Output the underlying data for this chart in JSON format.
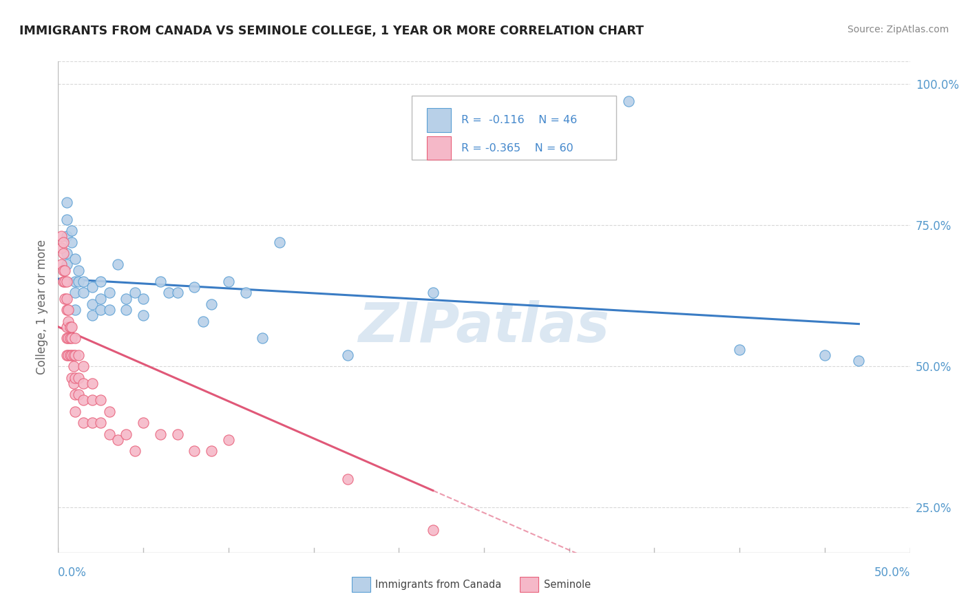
{
  "title": "IMMIGRANTS FROM CANADA VS SEMINOLE COLLEGE, 1 YEAR OR MORE CORRELATION CHART",
  "source_text": "Source: ZipAtlas.com",
  "ylabel": "College, 1 year or more",
  "ytick_values": [
    0.25,
    0.5,
    0.75,
    1.0
  ],
  "xlim": [
    0.0,
    0.5
  ],
  "ylim": [
    0.17,
    1.04
  ],
  "blue_color": "#b8d0e8",
  "pink_color": "#f5b8c8",
  "blue_edge_color": "#5a9fd4",
  "pink_edge_color": "#e8607a",
  "blue_line_color": "#3a7cc4",
  "pink_line_color": "#e05878",
  "watermark_color": "#ccdded",
  "legend_r1": "R =  -0.116",
  "legend_n1": "N = 46",
  "legend_r2": "R = -0.365",
  "legend_n2": "N = 60",
  "grid_color": "#d8d8d8",
  "axis_color": "#bbbbbb",
  "blue_x": [
    0.005,
    0.005,
    0.005,
    0.005,
    0.005,
    0.008,
    0.008,
    0.01,
    0.01,
    0.01,
    0.01,
    0.012,
    0.012,
    0.015,
    0.015,
    0.02,
    0.02,
    0.02,
    0.025,
    0.025,
    0.025,
    0.03,
    0.03,
    0.035,
    0.04,
    0.04,
    0.045,
    0.05,
    0.05,
    0.06,
    0.065,
    0.07,
    0.08,
    0.085,
    0.09,
    0.1,
    0.11,
    0.12,
    0.13,
    0.17,
    0.22,
    0.24,
    0.335,
    0.4,
    0.45,
    0.47
  ],
  "blue_y": [
    0.76,
    0.79,
    0.73,
    0.7,
    0.68,
    0.72,
    0.74,
    0.69,
    0.65,
    0.63,
    0.6,
    0.67,
    0.65,
    0.65,
    0.63,
    0.64,
    0.61,
    0.59,
    0.65,
    0.62,
    0.6,
    0.63,
    0.6,
    0.68,
    0.62,
    0.6,
    0.63,
    0.62,
    0.59,
    0.65,
    0.63,
    0.63,
    0.64,
    0.58,
    0.61,
    0.65,
    0.63,
    0.55,
    0.72,
    0.52,
    0.63,
    0.96,
    0.97,
    0.53,
    0.52,
    0.51
  ],
  "pink_x": [
    0.002,
    0.002,
    0.002,
    0.003,
    0.003,
    0.003,
    0.003,
    0.004,
    0.004,
    0.004,
    0.005,
    0.005,
    0.005,
    0.005,
    0.005,
    0.005,
    0.006,
    0.006,
    0.006,
    0.006,
    0.007,
    0.007,
    0.007,
    0.008,
    0.008,
    0.008,
    0.008,
    0.009,
    0.009,
    0.009,
    0.01,
    0.01,
    0.01,
    0.01,
    0.01,
    0.012,
    0.012,
    0.012,
    0.015,
    0.015,
    0.015,
    0.015,
    0.02,
    0.02,
    0.02,
    0.025,
    0.025,
    0.03,
    0.03,
    0.035,
    0.04,
    0.045,
    0.05,
    0.06,
    0.07,
    0.08,
    0.09,
    0.1,
    0.17,
    0.22
  ],
  "pink_y": [
    0.73,
    0.71,
    0.68,
    0.72,
    0.7,
    0.67,
    0.65,
    0.67,
    0.65,
    0.62,
    0.65,
    0.62,
    0.6,
    0.57,
    0.55,
    0.52,
    0.6,
    0.58,
    0.55,
    0.52,
    0.57,
    0.55,
    0.52,
    0.57,
    0.55,
    0.52,
    0.48,
    0.52,
    0.5,
    0.47,
    0.55,
    0.52,
    0.48,
    0.45,
    0.42,
    0.52,
    0.48,
    0.45,
    0.5,
    0.47,
    0.44,
    0.4,
    0.47,
    0.44,
    0.4,
    0.44,
    0.4,
    0.42,
    0.38,
    0.37,
    0.38,
    0.35,
    0.4,
    0.38,
    0.38,
    0.35,
    0.35,
    0.37,
    0.3,
    0.21
  ],
  "blue_line_y0": 0.655,
  "blue_line_y1": 0.575,
  "pink_line_y0": 0.57,
  "pink_line_y1": 0.28,
  "pink_solid_xend": 0.22,
  "blue_solid_xend": 0.47
}
